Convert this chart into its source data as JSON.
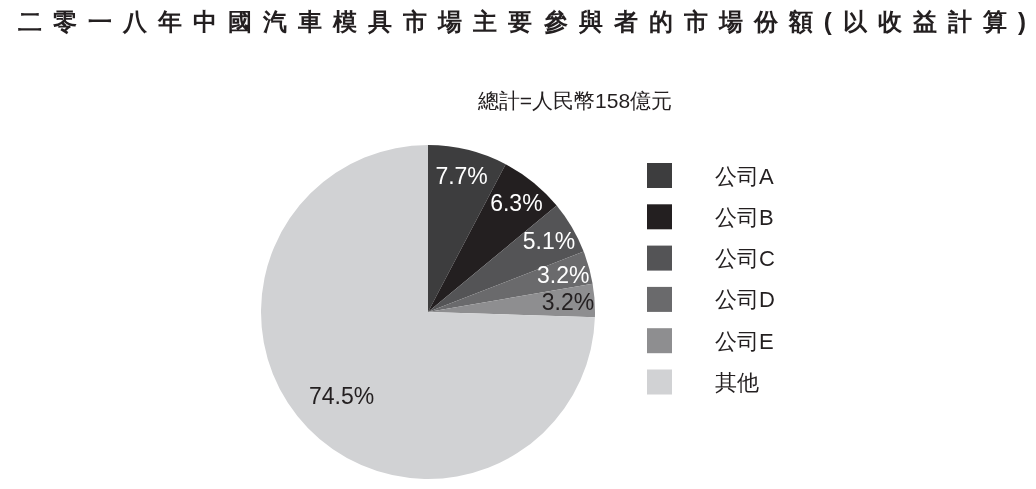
{
  "chart_data": {
    "type": "pie",
    "title": "二零一八年中國汽車模具市場主要參與者的市場份額(以收益計算)",
    "subtitle": "總計=人民幣158億元",
    "categories": [
      "公司A",
      "公司B",
      "公司C",
      "公司D",
      "公司E",
      "其他"
    ],
    "values": [
      7.7,
      6.3,
      5.1,
      3.2,
      3.2,
      74.5
    ],
    "colors": [
      "#3d3d3e",
      "#231f20",
      "#545456",
      "#6a6a6c",
      "#8e8e90",
      "#d1d2d4"
    ],
    "value_labels": [
      "7.7%",
      "6.3%",
      "5.1%",
      "3.2%",
      "3.2%",
      "74.5%"
    ],
    "legend": "right"
  }
}
